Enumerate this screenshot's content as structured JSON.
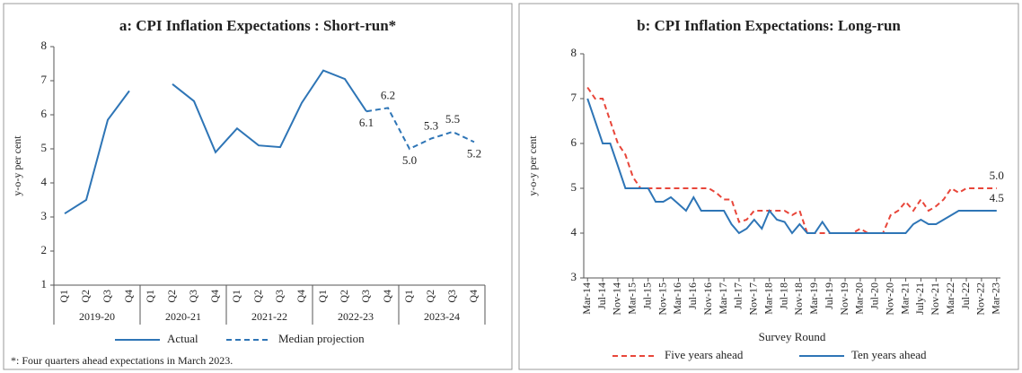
{
  "chart_data": [
    {
      "type": "line",
      "title": "a: CPI Inflation Expectations : Short-run*",
      "ylabel": "y-o-y per cent",
      "footnote": "*: Four quarters ahead expectations in March 2023.",
      "categories": [
        "Q1",
        "Q2",
        "Q3",
        "Q4",
        "Q1",
        "Q2",
        "Q3",
        "Q4",
        "Q1",
        "Q2",
        "Q3",
        "Q4",
        "Q1",
        "Q2",
        "Q3",
        "Q4",
        "Q1",
        "Q2",
        "Q3",
        "Q4"
      ],
      "groups": [
        "2019-20",
        "2020-21",
        "2021-22",
        "2022-23",
        "2023-24"
      ],
      "ylim": [
        1,
        8
      ],
      "yticks": [
        1,
        2,
        3,
        4,
        5,
        6,
        7,
        8
      ],
      "series": [
        {
          "name": "Actual",
          "color": "#2e75b6",
          "style": "solid",
          "values": [
            3.1,
            3.5,
            5.85,
            6.7,
            null,
            6.9,
            6.4,
            4.9,
            5.6,
            5.1,
            5.05,
            6.35,
            7.3,
            7.05,
            6.1,
            null,
            null,
            null,
            null,
            null
          ]
        },
        {
          "name": "Median projection",
          "color": "#2e75b6",
          "style": "dashed",
          "values": [
            null,
            null,
            null,
            null,
            null,
            null,
            null,
            null,
            null,
            null,
            null,
            null,
            null,
            null,
            6.1,
            6.2,
            5.0,
            5.3,
            5.5,
            5.2
          ],
          "value_labels": [
            null,
            null,
            null,
            null,
            null,
            null,
            null,
            null,
            null,
            null,
            null,
            null,
            null,
            null,
            "6.1",
            "6.2",
            "5.0",
            "5.3",
            "5.5",
            "5.2"
          ]
        }
      ]
    },
    {
      "type": "line",
      "title": "b: CPI Inflation Expectations: Long-run",
      "ylabel": "y-o-y per cent",
      "xlabel": "Survey Round",
      "categories": [
        "Mar-14",
        null,
        "Jul-14",
        null,
        "Nov-14",
        null,
        "Mar-15",
        null,
        "Jul-15",
        null,
        "Nov-15",
        null,
        "Mar-16",
        null,
        "Jul-16",
        null,
        "Nov-16",
        null,
        "Mar-17",
        null,
        "Jul-17",
        null,
        "Nov-17",
        null,
        "Mar-18",
        null,
        "Jul-18",
        null,
        "Nov-18",
        null,
        "Mar-19",
        null,
        "Jul-19",
        null,
        "Nov-19",
        null,
        "Mar-20",
        null,
        "Jul-20",
        null,
        "Nov-20",
        null,
        "Mar-21",
        null,
        "July-21",
        null,
        "Nov-21",
        null,
        "Mar-22",
        null,
        "Jul-22",
        null,
        "Nov-22",
        null,
        "Mar-23"
      ],
      "ylim": [
        3,
        8
      ],
      "yticks": [
        3,
        4,
        5,
        6,
        7,
        8
      ],
      "series": [
        {
          "name": "Five years ahead",
          "color": "#e8463a",
          "style": "dashed",
          "label_last": true,
          "values": [
            7.25,
            7.0,
            7.0,
            6.5,
            6.0,
            5.75,
            5.25,
            5.0,
            5.0,
            5.0,
            5.0,
            5.0,
            5.0,
            5.0,
            5.0,
            5.0,
            5.0,
            4.9,
            4.75,
            4.75,
            4.25,
            4.3,
            4.5,
            4.5,
            4.5,
            4.5,
            4.5,
            4.4,
            4.5,
            4.0,
            4.0,
            4.0,
            4.0,
            4.0,
            4.0,
            4.0,
            4.1,
            4.0,
            4.0,
            4.0,
            4.4,
            4.5,
            4.7,
            4.5,
            4.75,
            4.5,
            4.6,
            4.75,
            5.0,
            4.9,
            5.0,
            5.0,
            5.0,
            5.0,
            5.0
          ],
          "value_labels": [
            null,
            null,
            null,
            null,
            null,
            null,
            null,
            null,
            null,
            null,
            null,
            null,
            null,
            null,
            null,
            null,
            null,
            null,
            null,
            null,
            null,
            null,
            null,
            null,
            null,
            null,
            null,
            null,
            null,
            null,
            null,
            null,
            null,
            null,
            null,
            null,
            null,
            null,
            null,
            null,
            null,
            null,
            null,
            null,
            null,
            null,
            null,
            null,
            null,
            null,
            null,
            null,
            null,
            null,
            "5.0"
          ]
        },
        {
          "name": "Ten years ahead",
          "color": "#2e75b6",
          "style": "solid",
          "label_last": true,
          "values": [
            7.0,
            6.5,
            6.0,
            6.0,
            5.5,
            5.0,
            5.0,
            5.0,
            5.0,
            4.7,
            4.7,
            4.8,
            4.65,
            4.5,
            4.8,
            4.5,
            4.5,
            4.5,
            4.5,
            4.2,
            4.0,
            4.1,
            4.3,
            4.1,
            4.5,
            4.3,
            4.25,
            4.0,
            4.2,
            4.0,
            4.0,
            4.25,
            4.0,
            4.0,
            4.0,
            4.0,
            4.0,
            4.0,
            4.0,
            4.0,
            4.0,
            4.0,
            4.0,
            4.2,
            4.3,
            4.2,
            4.2,
            4.3,
            4.4,
            4.5,
            4.5,
            4.5,
            4.5,
            4.5,
            4.5
          ]
        }
      ]
    }
  ]
}
